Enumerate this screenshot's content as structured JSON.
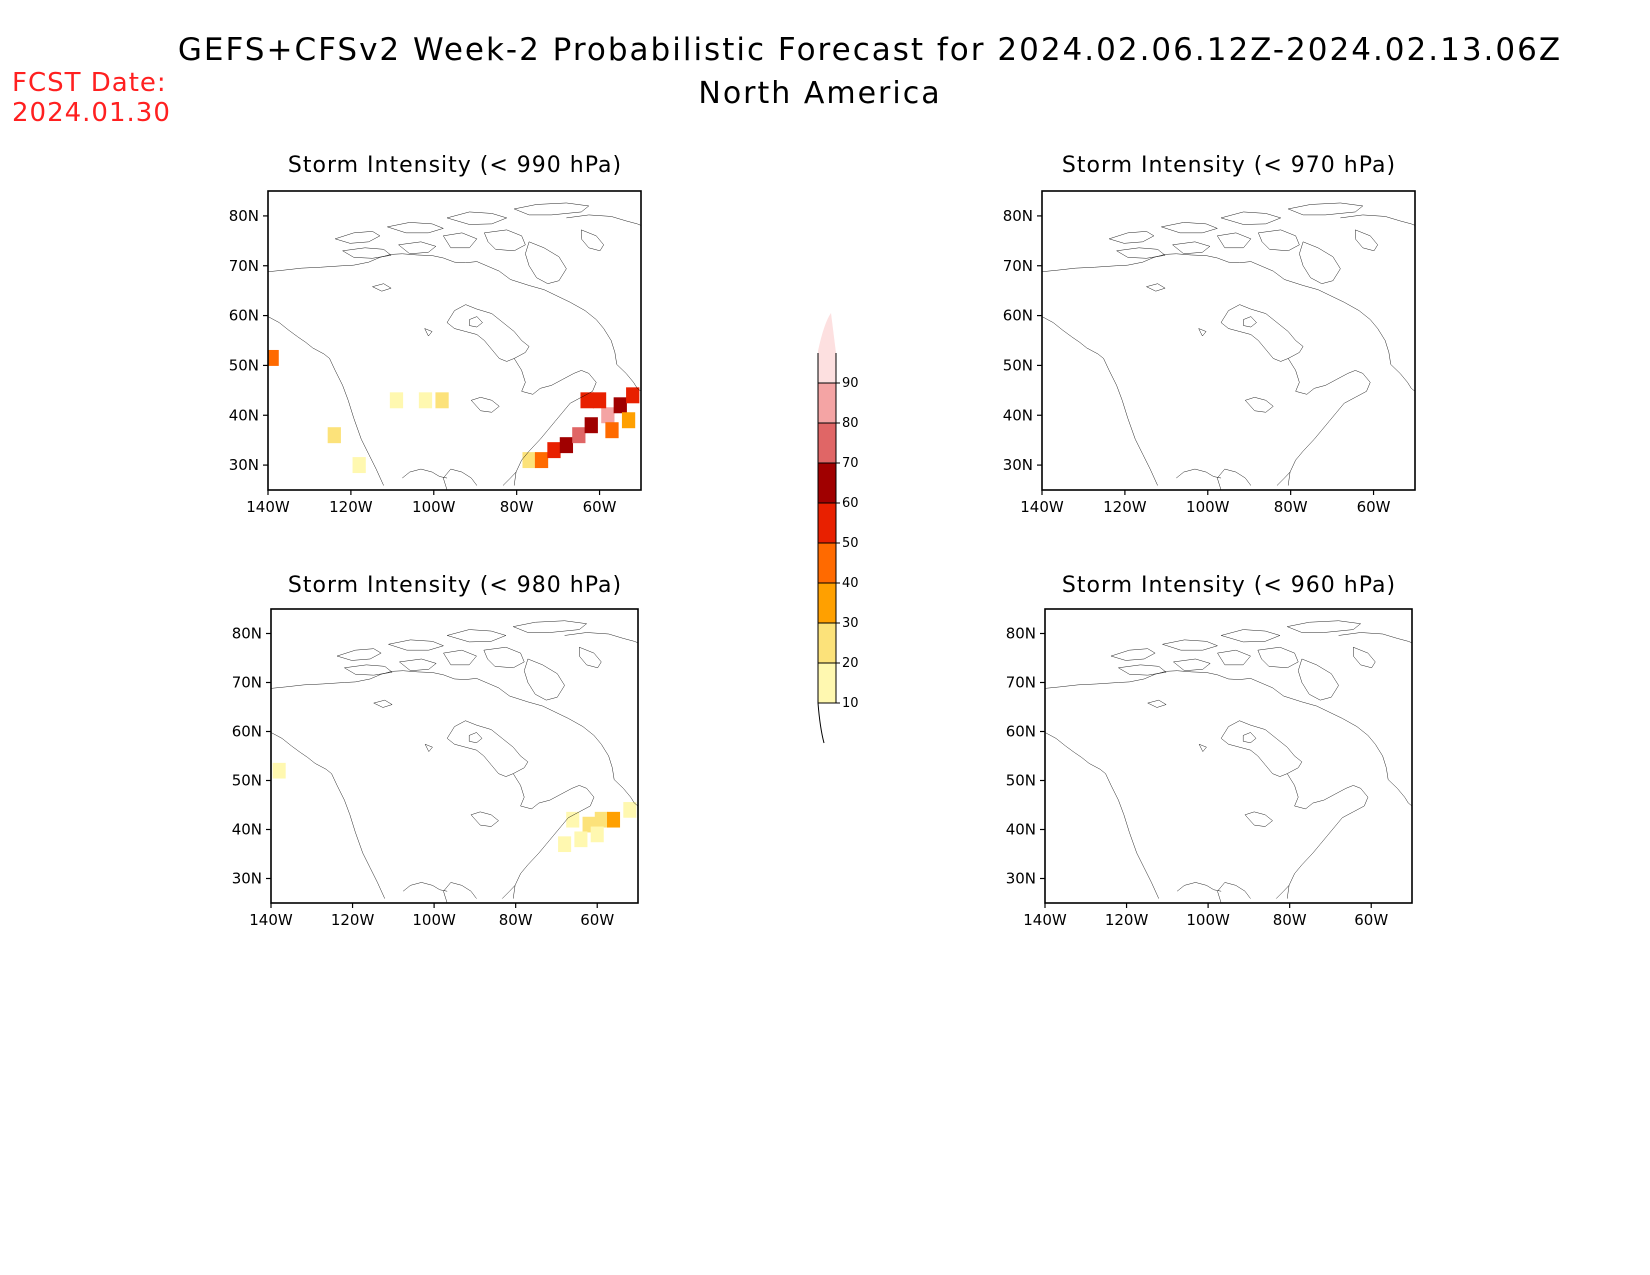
{
  "header": {
    "title": "GEFS+CFSv2 Week-2 Probabilistic Forecast for 2024.02.06.12Z-2024.02.13.06Z",
    "subtitle": "North America",
    "fcst_label": "FCST Date:",
    "fcst_date": "2024.01.30"
  },
  "colorbar": {
    "levels": [
      "10",
      "20",
      "30",
      "40",
      "50",
      "60",
      "70",
      "80",
      "90"
    ],
    "colors": [
      "#fff8b0",
      "#fce27a",
      "#ffa000",
      "#ff6a00",
      "#e82000",
      "#a00000",
      "#e06666",
      "#f4a4a4",
      "#fde0e0"
    ]
  },
  "axes": {
    "lat_labels": [
      "30N",
      "40N",
      "50N",
      "60N",
      "70N",
      "80N"
    ],
    "lon_labels": [
      "140W",
      "120W",
      "100W",
      "80W",
      "60W"
    ]
  },
  "chart_data": [
    {
      "type": "heatmap",
      "title": "Storm Intensity (< 990 hPa)",
      "xlim": [
        -140,
        -50
      ],
      "ylim": [
        25,
        85
      ],
      "cells": [
        {
          "lon": -139,
          "lat": 51.5,
          "prob": 45
        },
        {
          "lon": -109,
          "lat": 43,
          "prob": 10
        },
        {
          "lon": -102,
          "lat": 43,
          "prob": 15
        },
        {
          "lon": -98,
          "lat": 43,
          "prob": 20
        },
        {
          "lon": -124,
          "lat": 36,
          "prob": 20
        },
        {
          "lon": -118,
          "lat": 30,
          "prob": 10
        },
        {
          "lon": -77,
          "lat": 31,
          "prob": 25
        },
        {
          "lon": -74,
          "lat": 31,
          "prob": 40
        },
        {
          "lon": -71,
          "lat": 33,
          "prob": 55
        },
        {
          "lon": -68,
          "lat": 34,
          "prob": 60
        },
        {
          "lon": -65,
          "lat": 36,
          "prob": 75
        },
        {
          "lon": -62,
          "lat": 38,
          "prob": 65
        },
        {
          "lon": -58,
          "lat": 40,
          "prob": 80
        },
        {
          "lon": -55,
          "lat": 42,
          "prob": 60
        },
        {
          "lon": -52,
          "lat": 44,
          "prob": 55
        },
        {
          "lon": -60,
          "lat": 43,
          "prob": 55
        },
        {
          "lon": -63,
          "lat": 43,
          "prob": 50
        },
        {
          "lon": -57,
          "lat": 37,
          "prob": 40
        },
        {
          "lon": -53,
          "lat": 39,
          "prob": 30
        }
      ]
    },
    {
      "type": "heatmap",
      "title": "Storm Intensity (< 970 hPa)",
      "xlim": [
        -140,
        -50
      ],
      "ylim": [
        25,
        85
      ],
      "cells": []
    },
    {
      "type": "heatmap",
      "title": "Storm Intensity (< 980 hPa)",
      "xlim": [
        -140,
        -50
      ],
      "ylim": [
        25,
        85
      ],
      "cells": [
        {
          "lon": -138,
          "lat": 52,
          "prob": 10
        },
        {
          "lon": -66,
          "lat": 42,
          "prob": 15
        },
        {
          "lon": -62,
          "lat": 41,
          "prob": 20
        },
        {
          "lon": -59,
          "lat": 42,
          "prob": 20
        },
        {
          "lon": -56,
          "lat": 42,
          "prob": 35
        },
        {
          "lon": -60,
          "lat": 39,
          "prob": 15
        },
        {
          "lon": -64,
          "lat": 38,
          "prob": 15
        },
        {
          "lon": -68,
          "lat": 37,
          "prob": 10
        },
        {
          "lon": -52,
          "lat": 44,
          "prob": 10
        }
      ]
    },
    {
      "type": "heatmap",
      "title": "Storm Intensity (< 960 hPa)",
      "xlim": [
        -140,
        -50
      ],
      "ylim": [
        25,
        85
      ],
      "cells": []
    }
  ]
}
